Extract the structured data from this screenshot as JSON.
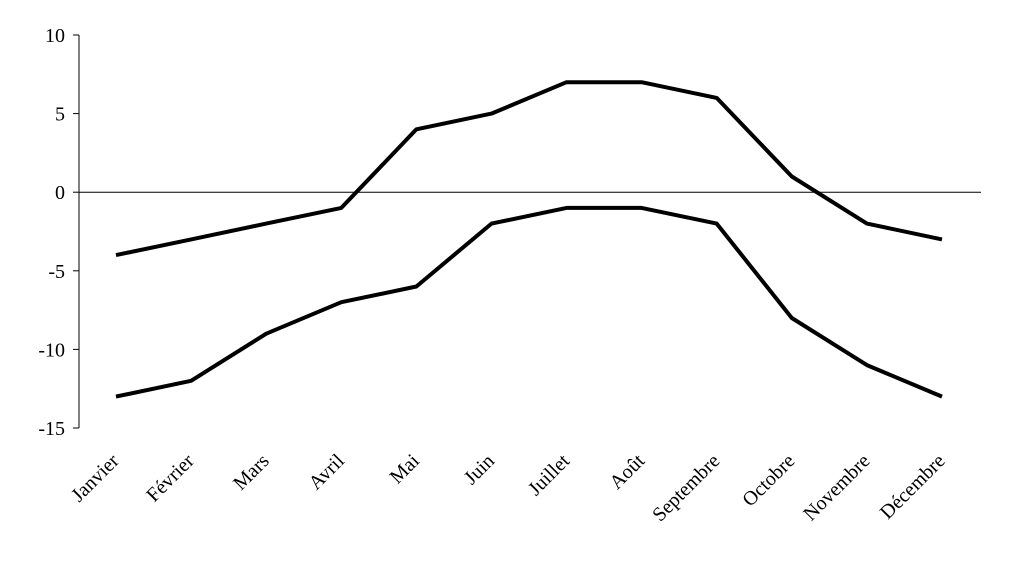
{
  "chart_data": {
    "type": "line",
    "title": "",
    "xlabel": "",
    "ylabel": "",
    "ylim": [
      -15,
      10
    ],
    "yticks": [
      10,
      5,
      0,
      -5,
      -10,
      -15
    ],
    "grid": false,
    "categories": [
      "Janvier",
      "Février",
      "Mars",
      "Avril",
      "Mai",
      "Juin",
      "Juillet",
      "Août",
      "Septembre",
      "Octobre",
      "Novembre",
      "Décembre"
    ],
    "series": [
      {
        "values": [
          -4,
          -3,
          -2,
          -1,
          4,
          5,
          7,
          7,
          6,
          1,
          -2,
          -3
        ],
        "color": "#000000"
      },
      {
        "values": [
          -13,
          -12,
          -9,
          -7,
          -6,
          -2,
          -1,
          -1,
          -2,
          -8,
          -11,
          -13
        ],
        "color": "#000000"
      }
    ]
  }
}
